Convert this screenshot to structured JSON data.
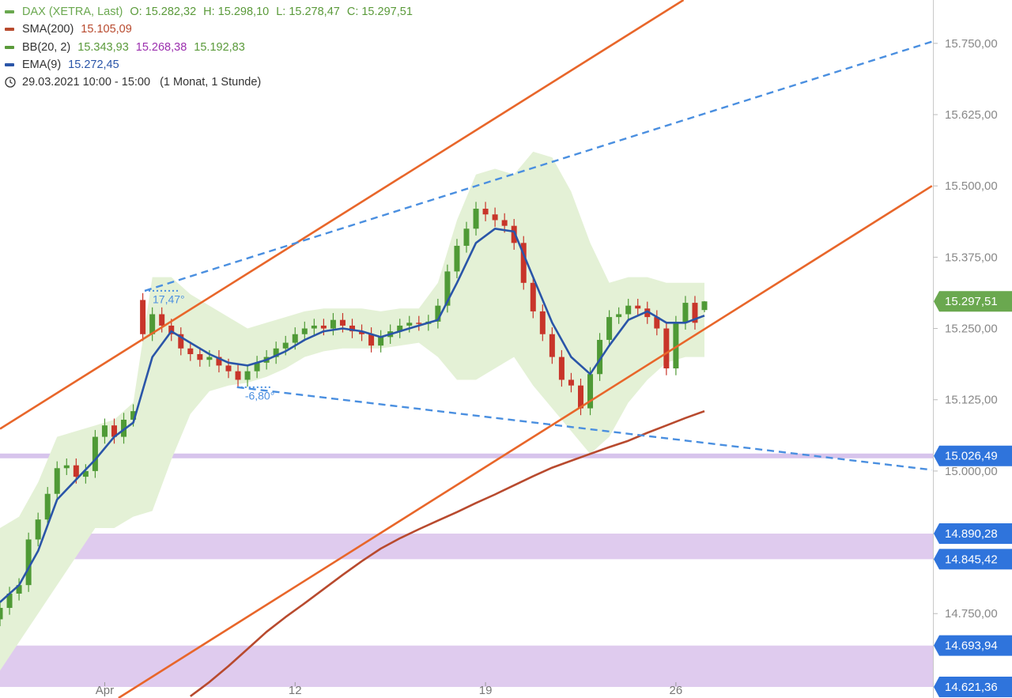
{
  "chart_data": {
    "type": "candlestick",
    "xlim": [
      9,
      107
    ],
    "ylim": [
      14602,
      15826
    ],
    "xticks": [
      {
        "value": 20,
        "label": "Apr"
      },
      {
        "value": 40,
        "label": "12"
      },
      {
        "value": 60,
        "label": "19"
      },
      {
        "value": 80,
        "label": "26"
      }
    ],
    "yticks": [
      {
        "value": 14750,
        "label": "14.750,00"
      },
      {
        "value": 15000,
        "label": "15.000,00"
      },
      {
        "value": 15125,
        "label": "15.125,00"
      },
      {
        "value": 15250,
        "label": "15.250,00"
      },
      {
        "value": 15375,
        "label": "15.375,00"
      },
      {
        "value": 15500,
        "label": "15.500,00"
      },
      {
        "value": 15625,
        "label": "15.625,00"
      },
      {
        "value": 15750,
        "label": "15.750,00"
      }
    ],
    "period": {
      "range": "29.03.2021 10:00 - 15:00",
      "resolution": "(1 Monat, 1 Stunde)"
    },
    "series": [
      {
        "name": "DAX (XETRA, Last)",
        "kind": "candles",
        "color": "#6aa84f",
        "up_color": "#4f9a36",
        "down_color": "#c8352a",
        "readouts": [
          {
            "label": "O: 15.282,32",
            "color": "#5a9a3a"
          },
          {
            "label": "H: 15.298,10",
            "color": "#5a9a3a"
          },
          {
            "label": "L: 15.278,47",
            "color": "#5a9a3a"
          },
          {
            "label": "C: 15.297,51",
            "color": "#5a9a3a"
          }
        ],
        "x": [
          9,
          10,
          11,
          12,
          13,
          14,
          15,
          16,
          17,
          18,
          19,
          20,
          21,
          22,
          23,
          24,
          25,
          26,
          27,
          28,
          29,
          30,
          31,
          32,
          33,
          34,
          35,
          36,
          37,
          38,
          39,
          40,
          41,
          42,
          43,
          44,
          45,
          46,
          47,
          48,
          49,
          50,
          51,
          52,
          53,
          54,
          55,
          56,
          57,
          58,
          59,
          60,
          61,
          62,
          63,
          64,
          65,
          66,
          67,
          68,
          69,
          70,
          71,
          72,
          73,
          74,
          75,
          76,
          77,
          78,
          79,
          80,
          81,
          82,
          83
        ],
        "open": [
          14740,
          14760,
          14785,
          14800,
          14880,
          14915,
          14960,
          15005,
          15010,
          14990,
          15000,
          15060,
          15080,
          15060,
          15090,
          15300,
          15240,
          15275,
          15255,
          15240,
          15215,
          15205,
          15195,
          15200,
          15185,
          15175,
          15160,
          15175,
          15190,
          15200,
          15215,
          15225,
          15240,
          15250,
          15255,
          15250,
          15265,
          15255,
          15245,
          15240,
          15220,
          15235,
          15245,
          15255,
          15260,
          15258,
          15262,
          15290,
          15350,
          15395,
          15425,
          15460,
          15450,
          15440,
          15430,
          15400,
          15330,
          15280,
          15240,
          15200,
          15160,
          15150,
          15110,
          15170,
          15230,
          15270,
          15275,
          15290,
          15285,
          15270,
          15250,
          15180,
          15260,
          15295,
          15282.32
        ],
        "high": [
          14772,
          14797,
          14812,
          14892,
          14927,
          14972,
          15017,
          15022,
          15022,
          15012,
          15072,
          15092,
          15092,
          15102,
          15117,
          15312,
          15287,
          15287,
          15267,
          15252,
          15227,
          15217,
          15212,
          15212,
          15197,
          15187,
          15187,
          15202,
          15212,
          15227,
          15237,
          15252,
          15262,
          15267,
          15267,
          15277,
          15277,
          15267,
          15257,
          15252,
          15247,
          15257,
          15267,
          15272,
          15272,
          15274,
          15302,
          15362,
          15407,
          15437,
          15472,
          15472,
          15462,
          15452,
          15442,
          15412,
          15342,
          15292,
          15252,
          15212,
          15172,
          15162,
          15182,
          15242,
          15282,
          15287,
          15302,
          15302,
          15297,
          15282,
          15262,
          15272,
          15307,
          15307,
          15298.1
        ],
        "low": [
          14728,
          14748,
          14773,
          14788,
          14868,
          14903,
          14948,
          14993,
          14978,
          14978,
          14988,
          15048,
          15048,
          15048,
          15078,
          15228,
          15228,
          15243,
          15228,
          15203,
          15193,
          15183,
          15183,
          15173,
          15163,
          15148,
          15148,
          15163,
          15178,
          15188,
          15203,
          15213,
          15228,
          15238,
          15238,
          15238,
          15243,
          15233,
          15228,
          15208,
          15208,
          15223,
          15233,
          15243,
          15246,
          15246,
          15250,
          15278,
          15338,
          15383,
          15413,
          15438,
          15428,
          15418,
          15388,
          15318,
          15268,
          15228,
          15188,
          15148,
          15138,
          15098,
          15098,
          15158,
          15218,
          15258,
          15263,
          15273,
          15258,
          15238,
          15168,
          15168,
          15248,
          15248,
          15278.47
        ],
        "close": [
          14760,
          14785,
          14800,
          14880,
          14915,
          14960,
          15005,
          15010,
          14990,
          15000,
          15060,
          15080,
          15060,
          15090,
          15105,
          15240,
          15275,
          15255,
          15240,
          15215,
          15205,
          15195,
          15200,
          15185,
          15175,
          15160,
          15175,
          15190,
          15200,
          15215,
          15225,
          15240,
          15250,
          15255,
          15250,
          15265,
          15255,
          15245,
          15240,
          15220,
          15235,
          15245,
          15255,
          15260,
          15258,
          15262,
          15290,
          15350,
          15395,
          15425,
          15460,
          15450,
          15440,
          15430,
          15400,
          15330,
          15280,
          15240,
          15200,
          15160,
          15150,
          15110,
          15170,
          15230,
          15270,
          15275,
          15290,
          15285,
          15270,
          15250,
          15180,
          15260,
          15295,
          15260,
          15297.51
        ]
      },
      {
        "name": "SMA(200)",
        "kind": "line",
        "color": "#b84a2e",
        "readouts": [
          {
            "label": "15.105,09",
            "color": "#b84a2e"
          }
        ],
        "x": [
          9,
          11,
          13,
          15,
          17,
          19,
          21,
          23,
          25,
          27,
          29,
          31,
          33,
          35,
          37,
          39,
          41,
          43,
          45,
          47,
          49,
          51,
          53,
          55,
          57,
          59,
          61,
          63,
          65,
          67,
          69,
          71,
          73,
          75,
          77,
          79,
          81,
          83
        ],
        "values": [
          null,
          null,
          null,
          null,
          null,
          null,
          null,
          null,
          null,
          null,
          14605,
          14630,
          14658,
          14688,
          14718,
          14744,
          14768,
          14793,
          14818,
          14842,
          14864,
          14882,
          14898,
          14913,
          14928,
          14944,
          14959,
          14975,
          14991,
          15006,
          15018,
          15030,
          15042,
          15053,
          15067,
          15080,
          15093,
          15105.09
        ]
      },
      {
        "name": "BB(20, 2)",
        "kind": "band",
        "color": "#5a9a3a",
        "fill": "#e4f1d6",
        "readouts": [
          {
            "label": "15.343,93",
            "color": "#5a9a3a"
          },
          {
            "label": "15.268,38",
            "color": "#9b2fae"
          },
          {
            "label": "15.192,83",
            "color": "#5a9a3a"
          }
        ],
        "x": [
          9,
          11,
          13,
          15,
          17,
          19,
          21,
          23,
          25,
          27,
          29,
          31,
          33,
          35,
          37,
          39,
          41,
          43,
          45,
          47,
          49,
          51,
          53,
          55,
          57,
          59,
          61,
          63,
          65,
          67,
          69,
          71,
          73,
          75,
          77,
          79,
          81,
          83
        ],
        "upper": [
          14900,
          14920,
          14980,
          15060,
          15070,
          15080,
          15090,
          15120,
          15340,
          15340,
          15310,
          15290,
          15270,
          15250,
          15260,
          15270,
          15280,
          15285,
          15285,
          15285,
          15280,
          15285,
          15285,
          15330,
          15440,
          15520,
          15530,
          15520,
          15560,
          15550,
          15490,
          15400,
          15330,
          15340,
          15340,
          15330,
          15330,
          15330
        ],
        "lower": [
          14650,
          14700,
          14750,
          14800,
          14850,
          14900,
          14900,
          14920,
          14930,
          15020,
          15100,
          15140,
          15150,
          15155,
          15165,
          15180,
          15200,
          15210,
          15215,
          15215,
          15215,
          15220,
          15225,
          15200,
          15160,
          15160,
          15180,
          15200,
          15150,
          15110,
          15070,
          15030,
          15060,
          15120,
          15160,
          15190,
          15200,
          15200
        ]
      },
      {
        "name": "EMA(9)",
        "kind": "line",
        "color": "#2a55a8",
        "readouts": [
          {
            "label": "15.272,45",
            "color": "#2a55a8"
          }
        ],
        "x": [
          9,
          11,
          13,
          15,
          17,
          19,
          21,
          23,
          25,
          27,
          29,
          31,
          33,
          35,
          37,
          39,
          41,
          43,
          45,
          47,
          49,
          51,
          53,
          55,
          57,
          59,
          61,
          63,
          65,
          67,
          69,
          71,
          73,
          75,
          77,
          79,
          81,
          83
        ],
        "values": [
          14770,
          14800,
          14860,
          14950,
          14985,
          15020,
          15060,
          15085,
          15200,
          15245,
          15225,
          15205,
          15190,
          15185,
          15195,
          15210,
          15230,
          15245,
          15250,
          15245,
          15235,
          15245,
          15255,
          15265,
          15330,
          15400,
          15425,
          15420,
          15340,
          15260,
          15200,
          15170,
          15220,
          15265,
          15280,
          15260,
          15260,
          15272.45
        ]
      }
    ],
    "trendlines": [
      {
        "color": "#e8662a",
        "dashed": false,
        "x": [
          9,
          80.8
        ],
        "values": [
          15074,
          15826
        ]
      },
      {
        "color": "#e8662a",
        "dashed": false,
        "x": [
          21.45,
          106.9
        ],
        "values": [
          14602,
          15500
        ]
      },
      {
        "color": "#4a8fe0",
        "dashed": true,
        "x": [
          24.2,
          106.9
        ],
        "values": [
          15316,
          15753
        ],
        "label": "17,47°"
      },
      {
        "color": "#4a8fe0",
        "dashed": true,
        "x": [
          33.9,
          106.9
        ],
        "values": [
          15147,
          15002
        ],
        "label": "-6,80°"
      }
    ],
    "zones": [
      {
        "color": "#d7c4ec",
        "top": {
          "value": 15026.49,
          "label": "15.026,49"
        },
        "bottom": null
      },
      {
        "color": "#dfcbee",
        "top": {
          "value": 14890.28,
          "label": "14.890,28"
        },
        "bottom": {
          "value": 14845.42,
          "label": "14.845,42"
        }
      },
      {
        "color": "#dfcbee",
        "top": {
          "value": 14693.94,
          "label": "14.693,94"
        },
        "bottom": {
          "value": 14621.36,
          "label": "14.621,36"
        }
      }
    ],
    "level_color": "#2f74dc",
    "last_price": {
      "value": 15297.51,
      "label": "15.297,51",
      "color": "#6aa84f"
    }
  }
}
